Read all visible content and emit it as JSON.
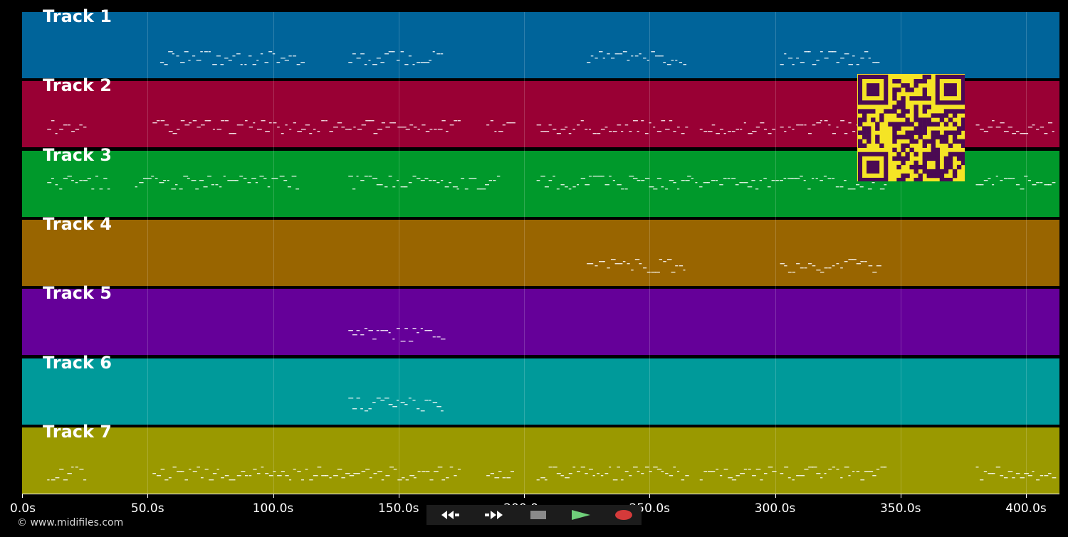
{
  "tracks": [
    {
      "label": "Track 1",
      "color": "#00649a"
    },
    {
      "label": "Track 2",
      "color": "#990034"
    },
    {
      "label": "Track 3",
      "color": "#00992b"
    },
    {
      "label": "Track 4",
      "color": "#996500"
    },
    {
      "label": "Track 5",
      "color": "#650099"
    },
    {
      "label": "Track 6",
      "color": "#009a9a"
    },
    {
      "label": "Track 7",
      "color": "#9a9900"
    }
  ],
  "axis": {
    "unit": "s",
    "range": [
      0,
      412.5
    ],
    "ticks": [
      "0.0s",
      "50.0s",
      "100.0s",
      "150.0s",
      "200.0s",
      "250.0s",
      "300.0s",
      "350.0s",
      "400.0s"
    ]
  },
  "footer": {
    "copyright": "© www.midifiles.com"
  },
  "transport": {
    "buttons": [
      {
        "name": "rewind-button",
        "icon": "rewind-icon",
        "bg": "#0a0a0a"
      },
      {
        "name": "fast-forward-button",
        "icon": "fast-forward-icon",
        "bg": "#0a0a0a"
      },
      {
        "name": "stop-button",
        "icon": "stop-icon",
        "bg": "#3a3a3a"
      },
      {
        "name": "play-button",
        "icon": "play-icon",
        "bg": "#2a5f2f"
      },
      {
        "name": "record-button",
        "icon": "record-icon",
        "bg": "#4a1c1c"
      }
    ]
  },
  "qr_code": {
    "icon": "qr-code-icon",
    "fg": "#4b0a53",
    "bg": "#f5e425"
  }
}
